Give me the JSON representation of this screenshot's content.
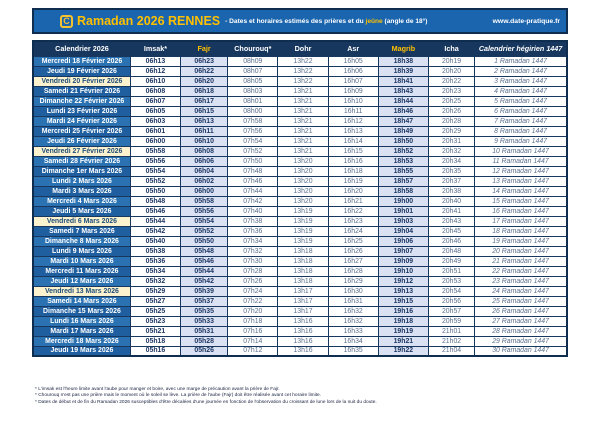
{
  "banner": {
    "logo_glyph": "C",
    "title": "Ramadan 2026 RENNES",
    "subtitle_prefix": "- Dates et horaires estimés des prières et du ",
    "subtitle_highlight": "jeûne",
    "subtitle_suffix": " (angle de 18°)",
    "website": "www.date-pratique.fr"
  },
  "colors": {
    "banner_blue": "#1B65AE",
    "border_navy": "#0F2E4F",
    "header_navy": "#17375E",
    "accent_gold": "#FFC000",
    "row_blue_odd": "#2B72B2",
    "row_blue_even": "#1F5F9F",
    "friday_cream": "#FCF2CE",
    "shaded_col": "#D9E1F2"
  },
  "table": {
    "columns": [
      "Calendrier 2026",
      "Imsak*",
      "Fajr",
      "Chourouq*",
      "Dohr",
      "Asr",
      "Magrib",
      "Icha",
      "Calendrier hégirien 1447"
    ],
    "column_keys": [
      "calendrier",
      "imsak",
      "fajr",
      "chourouq",
      "dohr",
      "asr",
      "magrib",
      "icha",
      "hijri"
    ],
    "rows": [
      {
        "date": "Mercredi 18 Février 2026",
        "imsak": "06h13",
        "fajr": "06h23",
        "chourouq": "08h09",
        "dohr": "13h22",
        "asr": "16h05",
        "magrib": "18h38",
        "icha": "20h19",
        "hijri": "1 Ramadan 1447",
        "friday": false
      },
      {
        "date": "Jeudi 19 Février 2026",
        "imsak": "06h12",
        "fajr": "06h22",
        "chourouq": "08h07",
        "dohr": "13h22",
        "asr": "16h06",
        "magrib": "18h39",
        "icha": "20h20",
        "hijri": "2 Ramadan 1447",
        "friday": false
      },
      {
        "date": "Vendredi 20 Février 2026",
        "imsak": "06h10",
        "fajr": "06h20",
        "chourouq": "08h05",
        "dohr": "13h22",
        "asr": "16h07",
        "magrib": "18h41",
        "icha": "20h22",
        "hijri": "3 Ramadan 1447",
        "friday": true
      },
      {
        "date": "Samedi 21 Février 2026",
        "imsak": "06h08",
        "fajr": "06h18",
        "chourouq": "08h03",
        "dohr": "13h21",
        "asr": "16h09",
        "magrib": "18h43",
        "icha": "20h23",
        "hijri": "4 Ramadan 1447",
        "friday": false
      },
      {
        "date": "Dimanche 22 Février 2026",
        "imsak": "06h07",
        "fajr": "06h17",
        "chourouq": "08h01",
        "dohr": "13h21",
        "asr": "16h10",
        "magrib": "18h44",
        "icha": "20h25",
        "hijri": "5 Ramadan 1447",
        "friday": false
      },
      {
        "date": "Lundi 23 Février 2026",
        "imsak": "06h05",
        "fajr": "06h15",
        "chourouq": "08h00",
        "dohr": "13h21",
        "asr": "16h11",
        "magrib": "18h46",
        "icha": "20h26",
        "hijri": "6 Ramadan 1447",
        "friday": false
      },
      {
        "date": "Mardi 24 Février 2026",
        "imsak": "06h03",
        "fajr": "06h13",
        "chourouq": "07h58",
        "dohr": "13h21",
        "asr": "16h12",
        "magrib": "18h47",
        "icha": "20h28",
        "hijri": "7 Ramadan 1447",
        "friday": false
      },
      {
        "date": "Mercredi 25 Février 2026",
        "imsak": "06h01",
        "fajr": "06h11",
        "chourouq": "07h56",
        "dohr": "13h21",
        "asr": "16h13",
        "magrib": "18h49",
        "icha": "20h29",
        "hijri": "8 Ramadan 1447",
        "friday": false
      },
      {
        "date": "Jeudi 26 Février 2026",
        "imsak": "06h00",
        "fajr": "06h10",
        "chourouq": "07h54",
        "dohr": "13h21",
        "asr": "16h14",
        "magrib": "18h50",
        "icha": "20h31",
        "hijri": "9 Ramadan 1447",
        "friday": false
      },
      {
        "date": "Vendredi 27 Février 2026",
        "imsak": "05h58",
        "fajr": "06h08",
        "chourouq": "07h52",
        "dohr": "13h21",
        "asr": "16h15",
        "magrib": "18h52",
        "icha": "20h32",
        "hijri": "10 Ramadan 1447",
        "friday": true
      },
      {
        "date": "Samedi 28 Février 2026",
        "imsak": "05h56",
        "fajr": "06h06",
        "chourouq": "07h50",
        "dohr": "13h20",
        "asr": "16h16",
        "magrib": "18h53",
        "icha": "20h34",
        "hijri": "11 Ramadan 1447",
        "friday": false
      },
      {
        "date": "Dimanche 1er Mars 2026",
        "imsak": "05h54",
        "fajr": "06h04",
        "chourouq": "07h48",
        "dohr": "13h20",
        "asr": "16h18",
        "magrib": "18h55",
        "icha": "20h35",
        "hijri": "12 Ramadan 1447",
        "friday": false
      },
      {
        "date": "Lundi 2 Mars 2026",
        "imsak": "05h52",
        "fajr": "06h02",
        "chourouq": "07h46",
        "dohr": "13h20",
        "asr": "16h19",
        "magrib": "18h57",
        "icha": "20h37",
        "hijri": "13 Ramadan 1447",
        "friday": false
      },
      {
        "date": "Mardi 3 Mars 2026",
        "imsak": "05h50",
        "fajr": "06h00",
        "chourouq": "07h44",
        "dohr": "13h20",
        "asr": "16h20",
        "magrib": "18h58",
        "icha": "20h38",
        "hijri": "14 Ramadan 1447",
        "friday": false
      },
      {
        "date": "Mercredi 4 Mars 2026",
        "imsak": "05h48",
        "fajr": "05h58",
        "chourouq": "07h42",
        "dohr": "13h20",
        "asr": "16h21",
        "magrib": "19h00",
        "icha": "20h40",
        "hijri": "15 Ramadan 1447",
        "friday": false
      },
      {
        "date": "Jeudi 5 Mars 2026",
        "imsak": "05h46",
        "fajr": "05h56",
        "chourouq": "07h40",
        "dohr": "13h19",
        "asr": "16h22",
        "magrib": "19h01",
        "icha": "20h41",
        "hijri": "16 Ramadan 1447",
        "friday": false
      },
      {
        "date": "Vendredi 6 Mars 2026",
        "imsak": "05h44",
        "fajr": "05h54",
        "chourouq": "07h38",
        "dohr": "13h19",
        "asr": "16h23",
        "magrib": "19h03",
        "icha": "20h43",
        "hijri": "17 Ramadan 1447",
        "friday": true
      },
      {
        "date": "Samedi 7 Mars 2026",
        "imsak": "05h42",
        "fajr": "05h52",
        "chourouq": "07h36",
        "dohr": "13h19",
        "asr": "16h24",
        "magrib": "19h04",
        "icha": "20h45",
        "hijri": "18 Ramadan 1447",
        "friday": false
      },
      {
        "date": "Dimanche 8 Mars 2026",
        "imsak": "05h40",
        "fajr": "05h50",
        "chourouq": "07h34",
        "dohr": "13h19",
        "asr": "16h25",
        "magrib": "19h06",
        "icha": "20h46",
        "hijri": "19 Ramadan 1447",
        "friday": false
      },
      {
        "date": "Lundi 9 Mars 2026",
        "imsak": "05h38",
        "fajr": "05h48",
        "chourouq": "07h32",
        "dohr": "13h18",
        "asr": "16h26",
        "magrib": "19h07",
        "icha": "20h48",
        "hijri": "20 Ramadan 1447",
        "friday": false
      },
      {
        "date": "Mardi 10 Mars 2026",
        "imsak": "05h36",
        "fajr": "05h46",
        "chourouq": "07h30",
        "dohr": "13h18",
        "asr": "16h27",
        "magrib": "19h09",
        "icha": "20h49",
        "hijri": "21 Ramadan 1447",
        "friday": false
      },
      {
        "date": "Mercredi 11 Mars 2026",
        "imsak": "05h34",
        "fajr": "05h44",
        "chourouq": "07h28",
        "dohr": "13h18",
        "asr": "16h28",
        "magrib": "19h10",
        "icha": "20h51",
        "hijri": "22 Ramadan 1447",
        "friday": false
      },
      {
        "date": "Jeudi 12 Mars 2026",
        "imsak": "05h32",
        "fajr": "05h42",
        "chourouq": "07h26",
        "dohr": "13h18",
        "asr": "16h29",
        "magrib": "19h12",
        "icha": "20h53",
        "hijri": "23 Ramadan 1447",
        "friday": false
      },
      {
        "date": "Vendredi 13 Mars 2026",
        "imsak": "05h29",
        "fajr": "05h39",
        "chourouq": "07h24",
        "dohr": "13h17",
        "asr": "16h30",
        "magrib": "19h13",
        "icha": "20h54",
        "hijri": "24 Ramadan 1447",
        "friday": true
      },
      {
        "date": "Samedi 14 Mars 2026",
        "imsak": "05h27",
        "fajr": "05h37",
        "chourouq": "07h22",
        "dohr": "13h17",
        "asr": "16h31",
        "magrib": "19h15",
        "icha": "20h56",
        "hijri": "25 Ramadan 1447",
        "friday": false
      },
      {
        "date": "Dimanche 15 Mars 2026",
        "imsak": "05h25",
        "fajr": "05h35",
        "chourouq": "07h20",
        "dohr": "13h17",
        "asr": "16h32",
        "magrib": "19h16",
        "icha": "20h57",
        "hijri": "26 Ramadan 1447",
        "friday": false
      },
      {
        "date": "Lundi 16 Mars 2026",
        "imsak": "05h23",
        "fajr": "05h33",
        "chourouq": "07h18",
        "dohr": "13h16",
        "asr": "16h32",
        "magrib": "19h18",
        "icha": "20h59",
        "hijri": "27 Ramadan 1447",
        "friday": false
      },
      {
        "date": "Mardi 17 Mars 2026",
        "imsak": "05h21",
        "fajr": "05h31",
        "chourouq": "07h16",
        "dohr": "13h16",
        "asr": "16h33",
        "magrib": "19h19",
        "icha": "21h01",
        "hijri": "28 Ramadan 1447",
        "friday": false
      },
      {
        "date": "Mercredi 18 Mars 2026",
        "imsak": "05h18",
        "fajr": "05h28",
        "chourouq": "07h14",
        "dohr": "13h16",
        "asr": "16h34",
        "magrib": "19h21",
        "icha": "21h02",
        "hijri": "29 Ramadan 1447",
        "friday": false
      },
      {
        "date": "Jeudi 19 Mars 2026",
        "imsak": "05h16",
        "fajr": "05h26",
        "chourouq": "07h12",
        "dohr": "13h16",
        "asr": "16h35",
        "magrib": "19h22",
        "icha": "21h04",
        "hijri": "30 Ramadan 1447",
        "friday": false
      }
    ]
  },
  "footnotes": [
    "* L'imsak est l'heure limite avant l'aube pour manger et boire, avec une marge de précaution avant la prière de Fajr.",
    "* Chourouq n'est pas une prière mais le moment où le soleil se lève. La prière de l'aube (Fajr) doit être réalisée avant cet horaire limite.",
    "* Dates de début et de fin du Ramadan 2026 susceptibles d'être décalées d'une journée en fonction de l'observation du croissant de lune lors de la nuit du doute."
  ]
}
